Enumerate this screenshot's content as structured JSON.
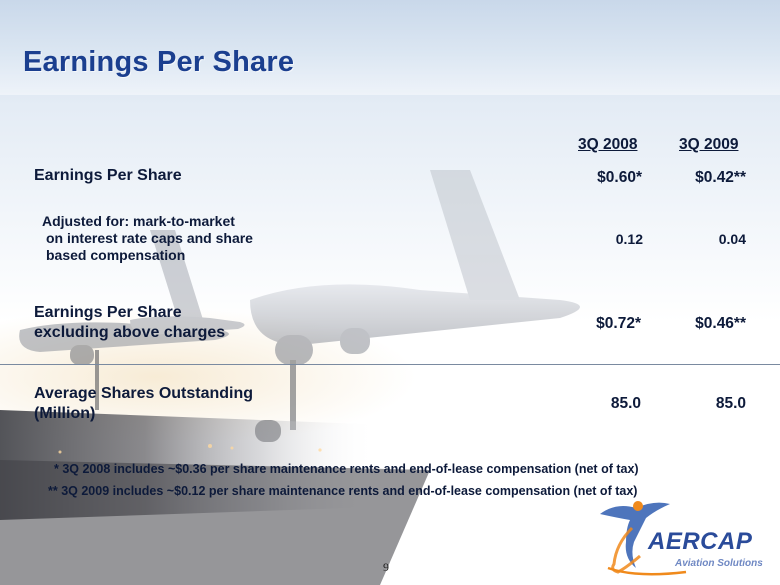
{
  "slide": {
    "title": "Earnings Per Share",
    "page_number": "9"
  },
  "table": {
    "columns": [
      "3Q 2008",
      "3Q 2009"
    ],
    "rows": [
      {
        "label_lines": [
          "Earnings Per Share"
        ],
        "values": [
          "$0.60*",
          "$0.42**"
        ]
      },
      {
        "label_lines": [
          "Adjusted for: mark-to-market",
          "on interest rate caps and share",
          "based compensation"
        ],
        "values": [
          "0.12",
          "0.04"
        ]
      },
      {
        "label_lines": [
          "Earnings Per Share",
          "excluding above charges"
        ],
        "values": [
          "$0.72*",
          "$0.46**"
        ]
      },
      {
        "label_lines": [
          "Average Shares Outstanding",
          "(Million)"
        ],
        "values": [
          "85.0",
          "85.0"
        ]
      }
    ]
  },
  "footnotes": [
    "* 3Q 2008 includes ~$0.36 per share maintenance rents and end-of-lease compensation (net of tax)",
    "** 3Q 2009 includes ~$0.12 per share maintenance rents and end-of-lease compensation (net of tax)"
  ],
  "logo": {
    "name": "AERCAP",
    "tagline": "Aviation Solutions"
  },
  "colors": {
    "title": "#1b3f8f",
    "text": "#0d1a3a",
    "logo_blue": "#2a4b9a",
    "logo_orange": "#f08a1c"
  }
}
